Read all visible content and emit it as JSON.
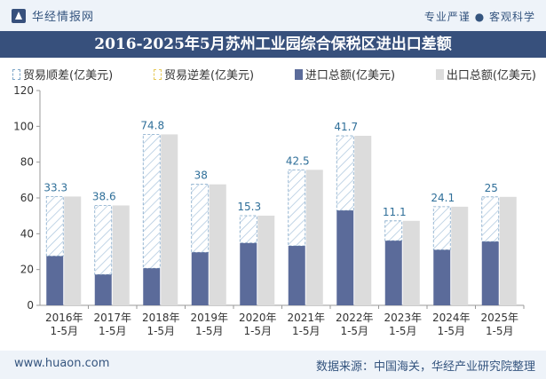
{
  "header": {
    "brand": "华经情报网",
    "tagline": "专业严谨 ● 客观科学"
  },
  "title": "2016-2025年5月苏州工业园综合保税区进出口差额",
  "legend": {
    "surplus": "贸易顺差(亿美元)",
    "deficit": "贸易逆差(亿美元)",
    "import": "进口总额(亿美元)",
    "export": "出口总额(亿美元)"
  },
  "colors": {
    "import": "#5b6b9a",
    "export": "#dcdcdc",
    "surplus_stroke": "#7fa6c8",
    "label": "#2f6f99",
    "brand": "#37507c"
  },
  "chart_data": {
    "type": "bar",
    "categories": [
      "2016年\n1-5月",
      "2017年\n1-5月",
      "2018年\n1-5月",
      "2019年\n1-5月",
      "2020年\n1-5月",
      "2021年\n1-5月",
      "2022年\n1-5月",
      "2023年\n1-5月",
      "2024年\n1-5月",
      "2025年\n1-5月"
    ],
    "series": [
      {
        "name": "贸易顺差(亿美元)",
        "values": [
          33.3,
          38.6,
          74.8,
          38,
          15.3,
          42.5,
          41.7,
          11.1,
          24.1,
          25
        ]
      },
      {
        "name": "贸易逆差(亿美元)",
        "values": [
          0,
          0,
          0,
          0,
          0,
          0,
          0,
          0,
          0,
          0
        ]
      },
      {
        "name": "进口总额(亿美元)",
        "values": [
          27.5,
          17.2,
          20.7,
          29.6,
          34.8,
          33.2,
          53.0,
          36.1,
          31.0,
          35.6
        ]
      },
      {
        "name": "出口总额(亿美元)",
        "values": [
          60.8,
          55.8,
          95.5,
          67.6,
          50.1,
          75.7,
          94.7,
          47.2,
          55.1,
          60.6
        ]
      }
    ],
    "ylim": [
      0,
      120
    ],
    "yticks": [
      0,
      20,
      40,
      60,
      80,
      100,
      120
    ],
    "grid": false,
    "legend_position": "top"
  },
  "footer": {
    "website": "www.huaon.com",
    "source": "数据来源：中国海关，华经产业研究院整理"
  }
}
